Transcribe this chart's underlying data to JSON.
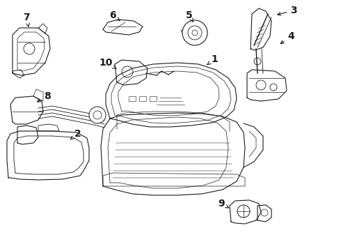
{
  "bg_color": "#ffffff",
  "line_color": "#1a1a1a",
  "fig_width": 4.9,
  "fig_height": 3.6,
  "dpi": 100,
  "label_fontsize": 10,
  "label_fontweight": "bold"
}
